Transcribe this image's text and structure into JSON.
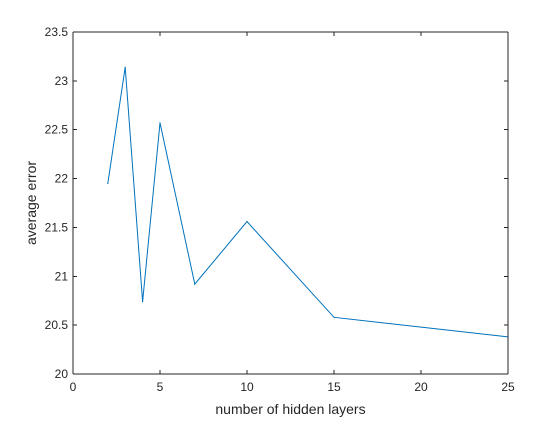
{
  "chart_data": {
    "type": "line",
    "title": "",
    "xlabel": "number of hidden layers",
    "ylabel": "average error",
    "xlim": [
      0,
      25
    ],
    "ylim": [
      20,
      23.5
    ],
    "x_ticks": [
      "0",
      "5",
      "10",
      "15",
      "20",
      "25"
    ],
    "y_ticks": [
      "20",
      "20.5",
      "21",
      "21.5",
      "22",
      "22.5",
      "23",
      "23.5"
    ],
    "grid": false,
    "series": [
      {
        "color": "#0072BD",
        "x": [
          2,
          3,
          4,
          5,
          7,
          10,
          15,
          25
        ],
        "y": [
          21.95,
          23.14,
          20.74,
          22.57,
          20.92,
          21.56,
          20.58,
          20.38
        ]
      }
    ]
  }
}
